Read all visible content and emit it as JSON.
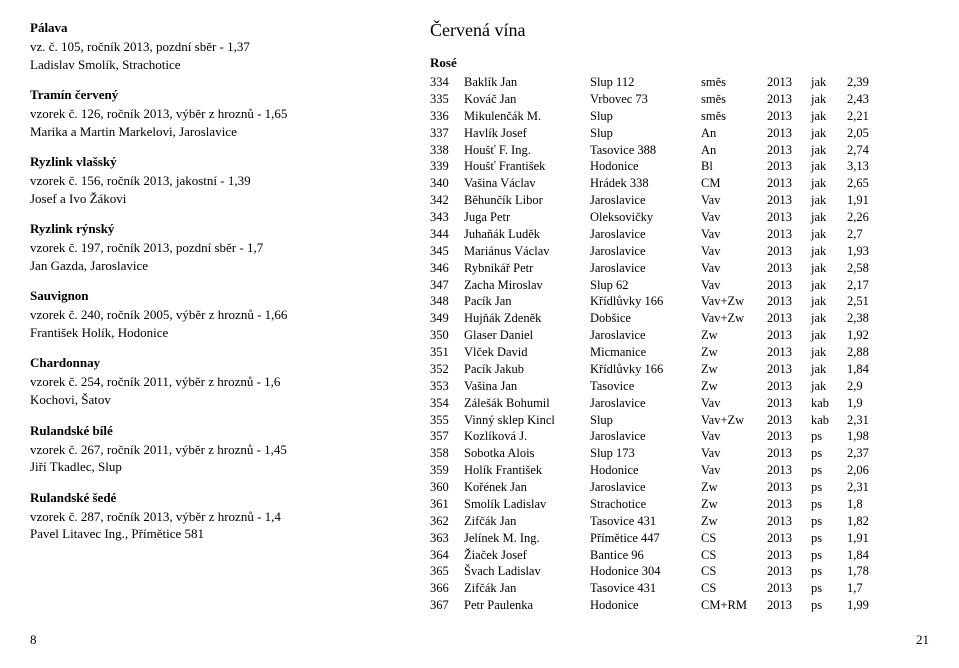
{
  "left": {
    "blocks": [
      {
        "heading": "Pálava",
        "lines": [
          "vz. č. 105, ročník 2013, pozdní sběr - 1,37",
          "Ladislav Smolík, Strachotice"
        ]
      },
      {
        "heading": "Tramín červený",
        "lines": [
          "vzorek č. 126, ročník 2013, výběr z hroznů - 1,65",
          "Marika a Martin  Markelovi, Jaroslavice"
        ]
      },
      {
        "heading": "Ryzlink vlašský",
        "lines": [
          "vzorek č. 156, ročník 2013, jakostní - 1,39",
          "Josef a Ivo Žákovi"
        ]
      },
      {
        "heading": "Ryzlink rýnský",
        "lines": [
          "vzorek č. 197, ročník 2013, pozdní sběr - 1,7",
          "Jan Gazda, Jaroslavice"
        ]
      },
      {
        "heading": "Sauvignon",
        "lines": [
          "vzorek č. 240, ročník 2005, výběr z hroznů - 1,66",
          "František Holík, Hodonice"
        ]
      },
      {
        "heading": "Chardonnay",
        "lines": [
          "vzorek č. 254, ročník 2011, výběr z hroznů - 1,6",
          "Kochovi, Šatov"
        ]
      },
      {
        "heading": "Rulandské bílé",
        "lines": [
          "vzorek č. 267, ročník 2011, výběr z hroznů - 1,45",
          "Jiří Tkadlec, Slup"
        ]
      },
      {
        "heading": "Rulandské šedé",
        "lines": [
          "vzorek č. 287, ročník 2013, výběr z hroznů - 1,4",
          "Pavel Litavec Ing., Přímětice 581"
        ]
      }
    ],
    "page_num": "8"
  },
  "right": {
    "section_title": "Červená vína",
    "sub_title": "Rosé",
    "rows": [
      [
        "334",
        "Baklík Jan",
        "Slup 112",
        "směs",
        "2013",
        "jak",
        "2,39"
      ],
      [
        "335",
        "Kováč Jan",
        "Vrbovec 73",
        "směs",
        "2013",
        "jak",
        "2,43"
      ],
      [
        "336",
        "Mikulenčák M.",
        "Slup",
        "směs",
        "2013",
        "jak",
        "2,21"
      ],
      [
        "337",
        "Havlík Josef",
        "Slup",
        "An",
        "2013",
        "jak",
        "2,05"
      ],
      [
        "338",
        "Houšť F. Ing.",
        "Tasovice 388",
        "An",
        "2013",
        "jak",
        "2,74"
      ],
      [
        "339",
        "Houšť František",
        "Hodonice",
        "Bl",
        "2013",
        "jak",
        "3,13"
      ],
      [
        "340",
        "Vašina Václav",
        "Hrádek 338",
        "CM",
        "2013",
        "jak",
        "2,65"
      ],
      [
        "342",
        "Běhunčík Libor",
        "Jaroslavice",
        "Vav",
        "2013",
        "jak",
        "1,91"
      ],
      [
        "343",
        "Juga Petr",
        "Oleksovičky",
        "Vav",
        "2013",
        "jak",
        "2,26"
      ],
      [
        "344",
        "Juhaňák Luděk",
        "Jaroslavice",
        "Vav",
        "2013",
        "jak",
        "2,7"
      ],
      [
        "345",
        "Mariánus Václav",
        "Jaroslavice",
        "Vav",
        "2013",
        "jak",
        "1,93"
      ],
      [
        "346",
        "Rybnikář Petr",
        "Jaroslavice",
        "Vav",
        "2013",
        "jak",
        "2,58"
      ],
      [
        "347",
        "Zacha Miroslav",
        "Slup 62",
        "Vav",
        "2013",
        "jak",
        "2,17"
      ],
      [
        "348",
        "Pacík Jan",
        "Křídlůvky 166",
        "Vav+Zw",
        "2013",
        "jak",
        "2,51"
      ],
      [
        "349",
        "Hujňák Zdeněk",
        "Dobšice",
        "Vav+Zw",
        "2013",
        "jak",
        "2,38"
      ],
      [
        "350",
        "Glaser Daniel",
        "Jaroslavice",
        "Zw",
        "2013",
        "jak",
        "1,92"
      ],
      [
        "351",
        "Vlček David",
        "Micmanice",
        "Zw",
        "2013",
        "jak",
        "2,88"
      ],
      [
        "352",
        "Pacík Jakub",
        "Křídlůvky 166",
        "Zw",
        "2013",
        "jak",
        "1,84"
      ],
      [
        "353",
        "Vašina Jan",
        "Tasovice",
        "Zw",
        "2013",
        "jak",
        "2,9"
      ],
      [
        "354",
        "Zálešák Bohumil",
        "Jaroslavice",
        "Vav",
        "2013",
        "kab",
        "1,9"
      ],
      [
        "355",
        "Vinný sklep Kincl",
        "Slup",
        "Vav+Zw",
        "2013",
        "kab",
        "2,31"
      ],
      [
        "357",
        "Kozlíková J.",
        "Jaroslavice",
        "Vav",
        "2013",
        "ps",
        "1,98"
      ],
      [
        "358",
        "Sobotka Alois",
        "Slup 173",
        "Vav",
        "2013",
        "ps",
        "2,37"
      ],
      [
        "359",
        "Holík František",
        "Hodonice",
        "Vav",
        "2013",
        "ps",
        "2,06"
      ],
      [
        "360",
        "Kořének Jan",
        "Jaroslavice",
        "Zw",
        "2013",
        "ps",
        "2,31"
      ],
      [
        "361",
        "Smolík Ladislav",
        "Strachotice",
        "Zw",
        "2013",
        "ps",
        "1,8"
      ],
      [
        "362",
        "Zifčák Jan",
        "Tasovice 431",
        "Zw",
        "2013",
        "ps",
        "1,82"
      ],
      [
        "363",
        "Jelínek M. Ing.",
        "Přímětice 447",
        "CS",
        "2013",
        "ps",
        "1,91"
      ],
      [
        "364",
        "Žiaček Josef",
        "Bantice 96",
        "CS",
        "2013",
        "ps",
        "1,84"
      ],
      [
        "365",
        "Švach Ladislav",
        "Hodonice 304",
        "CS",
        "2013",
        "ps",
        "1,78"
      ],
      [
        "366",
        "Zifčák Jan",
        "Tasovice 431",
        "CS",
        "2013",
        "ps",
        "1,7"
      ],
      [
        "367",
        "Petr Paulenka",
        "Hodonice",
        "CM+RM",
        "2013",
        "ps",
        "1,99"
      ]
    ],
    "page_num": "21"
  }
}
